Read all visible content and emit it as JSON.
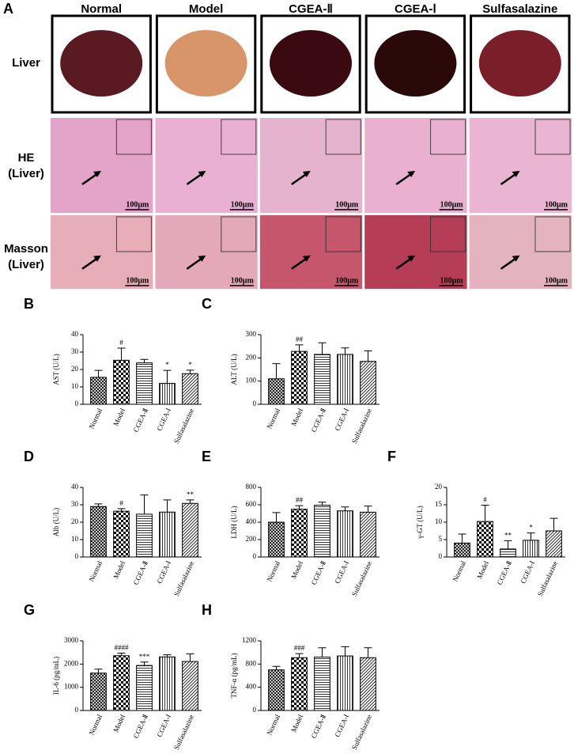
{
  "panel_a": {
    "label": "A",
    "columns": [
      "Normal",
      "Model",
      "CGEA-Ⅱ",
      "CGEA-Ⅰ",
      "Sulfasalazine"
    ],
    "rows": [
      [
        "Liver"
      ],
      [
        "HE",
        "(Liver)"
      ],
      [
        "Masson",
        "(Liver)"
      ]
    ],
    "scale_bar": "100μm"
  },
  "chart_data": [
    {
      "panel": "B",
      "type": "bar",
      "ylabel": "AST  (U/L)",
      "categories": [
        "Normal",
        "Model",
        "CGEA-Ⅱ",
        "CGEA-Ⅰ",
        "Sulfasalazine"
      ],
      "values": [
        15.5,
        25.3,
        23.8,
        12,
        17.6
      ],
      "errors": [
        4,
        7,
        2,
        7.5,
        2
      ],
      "annotations": [
        null,
        "#",
        null,
        "*",
        "*"
      ],
      "ylim": [
        0,
        40
      ],
      "yticks": [
        0,
        10,
        20,
        30,
        40
      ],
      "patterns": [
        "crosshatch",
        "checker",
        "horizontal",
        "vertical",
        "diagonal"
      ],
      "color": "#000000"
    },
    {
      "panel": "C",
      "type": "bar",
      "ylabel": "ALT  (U/L)",
      "categories": [
        "Normal",
        "Model",
        "CGEA-Ⅱ",
        "CGEA-Ⅰ",
        "Sulfasalazine"
      ],
      "values": [
        110,
        228,
        215,
        215,
        185
      ],
      "errors": [
        65,
        28,
        50,
        28,
        45
      ],
      "annotations": [
        null,
        "##",
        null,
        null,
        null
      ],
      "ylim": [
        0,
        300
      ],
      "yticks": [
        0,
        100,
        200,
        300
      ],
      "patterns": [
        "crosshatch",
        "checker",
        "horizontal",
        "vertical",
        "diagonal"
      ],
      "color": "#000000"
    },
    {
      "panel": "D",
      "type": "bar",
      "ylabel": "Alb  (U/L)",
      "categories": [
        "Normal",
        "Model",
        "CGEA-Ⅱ",
        "CGEA-Ⅰ",
        "Sulfasalazine"
      ],
      "values": [
        29,
        26.3,
        24.6,
        25.8,
        30.8
      ],
      "errors": [
        1.5,
        1.5,
        11,
        7,
        2
      ],
      "annotations": [
        null,
        "#",
        null,
        null,
        "**"
      ],
      "ylim": [
        0,
        40
      ],
      "yticks": [
        0,
        10,
        20,
        30,
        40
      ],
      "patterns": [
        "crosshatch",
        "checker",
        "horizontal",
        "vertical",
        "diagonal"
      ],
      "color": "#000000"
    },
    {
      "panel": "E",
      "type": "bar",
      "ylabel": "LDH  (U/L)",
      "categories": [
        "Normal",
        "Model",
        "CGEA-Ⅱ",
        "CGEA-Ⅰ",
        "Sulfasalazine"
      ],
      "values": [
        400,
        550,
        595,
        530,
        515
      ],
      "errors": [
        110,
        40,
        35,
        45,
        70
      ],
      "annotations": [
        null,
        "##",
        null,
        null,
        null
      ],
      "ylim": [
        0,
        800
      ],
      "yticks": [
        0,
        200,
        400,
        600,
        800
      ],
      "patterns": [
        "crosshatch",
        "checker",
        "horizontal",
        "vertical",
        "diagonal"
      ],
      "color": "#000000"
    },
    {
      "panel": "F",
      "type": "bar",
      "ylabel": "γ-GT  (U/L)",
      "categories": [
        "Normal",
        "Model",
        "CGEA-Ⅱ",
        "CGEA-Ⅰ",
        "Sulfasalazine"
      ],
      "values": [
        4,
        10.2,
        2.3,
        4.8,
        7.5
      ],
      "errors": [
        2.6,
        4.7,
        2.4,
        2.1,
        3.6
      ],
      "annotations": [
        null,
        "#",
        "**",
        "*",
        null
      ],
      "ylim": [
        0,
        20
      ],
      "yticks": [
        0,
        5,
        10,
        15,
        20
      ],
      "patterns": [
        "crosshatch",
        "checker",
        "horizontal",
        "vertical",
        "diagonal"
      ],
      "color": "#000000"
    },
    {
      "panel": "G",
      "type": "bar",
      "ylabel": "IL-6  (pg/mL)",
      "categories": [
        "Normal",
        "Model",
        "CGEA-Ⅱ",
        "CGEA-Ⅰ",
        "Sulfasalazine"
      ],
      "values": [
        1610,
        2360,
        1940,
        2310,
        2110
      ],
      "errors": [
        170,
        110,
        150,
        90,
        330
      ],
      "annotations": [
        null,
        "####",
        "***",
        null,
        null
      ],
      "ylim": [
        0,
        3000
      ],
      "yticks": [
        0,
        1000,
        2000,
        3000
      ],
      "patterns": [
        "crosshatch",
        "checker",
        "horizontal",
        "vertical",
        "diagonal"
      ],
      "color": "#000000"
    },
    {
      "panel": "H",
      "type": "bar",
      "ylabel": "TNF-α  (pg/mL)",
      "categories": [
        "Normal",
        "Model",
        "CGEA-Ⅱ",
        "CGEA-Ⅰ",
        "Sulfasalazine"
      ],
      "values": [
        700,
        910,
        920,
        940,
        910
      ],
      "errors": [
        60,
        70,
        160,
        160,
        170
      ],
      "annotations": [
        null,
        "###",
        null,
        null,
        null
      ],
      "ylim": [
        0,
        1200
      ],
      "yticks": [
        0,
        400,
        800,
        1200
      ],
      "patterns": [
        "crosshatch",
        "checker",
        "horizontal",
        "vertical",
        "diagonal"
      ],
      "color": "#000000"
    }
  ]
}
